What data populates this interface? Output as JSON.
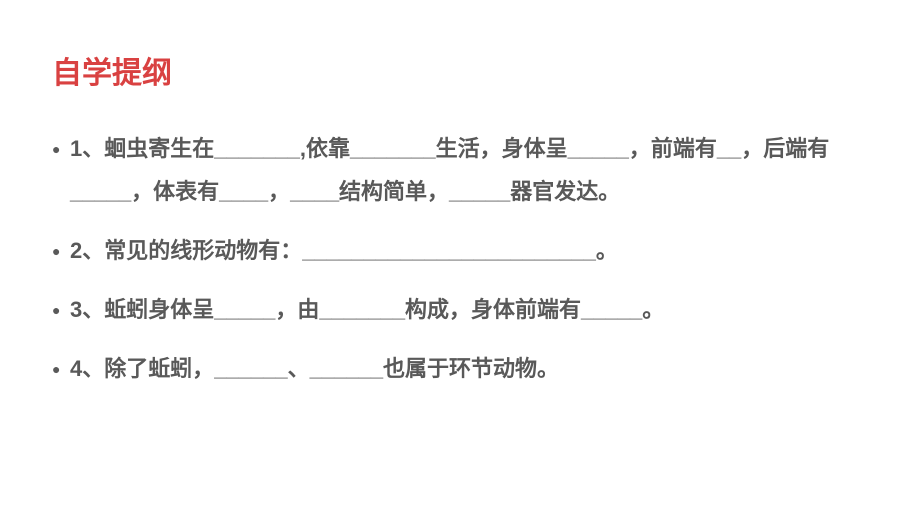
{
  "title": {
    "text": "自学提纲",
    "color": "#d94141"
  },
  "body": {
    "color": "#595959",
    "fontsize": 22,
    "fontweight": "bold"
  },
  "items": [
    {
      "text": "1、蛔虫寄生在_______,依靠_______生活，身体呈_____，前端有__，后端有_____，体表有____，____结构简单，_____器官发达。"
    },
    {
      "text": "2、常见的线形动物有：________________________。"
    },
    {
      "text": "3、蚯蚓身体呈_____，由_______构成，身体前端有_____。"
    },
    {
      "text": "4、除了蚯蚓，______、______也属于环节动物。"
    }
  ]
}
